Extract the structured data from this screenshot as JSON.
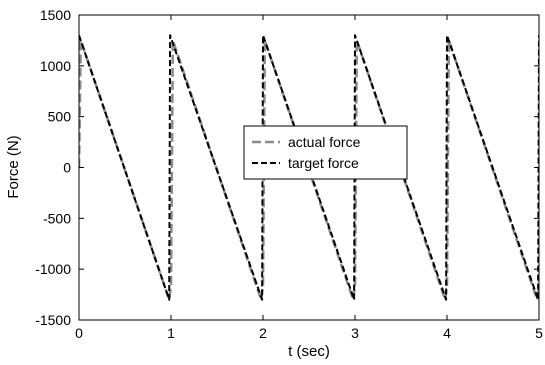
{
  "chart_data": {
    "type": "line",
    "title": "",
    "xlabel": "t (sec)",
    "ylabel": "Force (N)",
    "xlim": [
      0,
      5
    ],
    "ylim": [
      -1500,
      1500
    ],
    "xticks": [
      0,
      1,
      2,
      3,
      4,
      5
    ],
    "yticks": [
      -1500,
      -1000,
      -500,
      0,
      500,
      1000,
      1500
    ],
    "grid": false,
    "legend": {
      "position": "center-right"
    },
    "series": [
      {
        "name": "actual force",
        "color": "#8c8c8c",
        "style": "dashed",
        "x": [
          0,
          0.02,
          0.98,
          1.0,
          1.02,
          1.98,
          2.0,
          2.02,
          2.98,
          3.0,
          3.02,
          3.98,
          4.0,
          4.02,
          4.98,
          5.0
        ],
        "y": [
          0,
          1250,
          -1300,
          -1150,
          1250,
          -1300,
          -1150,
          1250,
          -1300,
          -1150,
          1250,
          -1300,
          -1150,
          1250,
          -1300,
          -1150
        ]
      },
      {
        "name": "target force",
        "color": "#000000",
        "style": "dashed",
        "x": [
          0,
          0.98,
          0.99,
          1.99,
          2.0,
          2.99,
          3.0,
          3.99,
          4.0,
          4.99,
          5.0
        ],
        "y": [
          1300,
          -1300,
          1300,
          -1300,
          1300,
          -1300,
          1300,
          -1300,
          1300,
          -1300,
          1300
        ]
      }
    ]
  }
}
